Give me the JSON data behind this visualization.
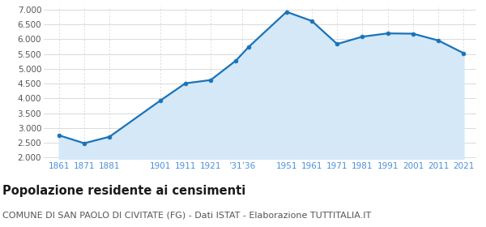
{
  "years": [
    1861,
    1871,
    1881,
    1901,
    1911,
    1921,
    1931,
    1936,
    1951,
    1961,
    1971,
    1981,
    1991,
    2001,
    2011,
    2021
  ],
  "population": [
    2750,
    2480,
    2700,
    3920,
    4510,
    4620,
    5280,
    5740,
    6930,
    6620,
    5840,
    6090,
    6200,
    6190,
    5960,
    5530
  ],
  "x_tick_labels": [
    "1861",
    "1871",
    "1881",
    "1901",
    "1911",
    "1921",
    "’31’36",
    "1951",
    "1961",
    "1971",
    "1981",
    "1991",
    "2001",
    "2011",
    "2021"
  ],
  "x_tick_positions": [
    1861,
    1871,
    1881,
    1901,
    1911,
    1921,
    1933.5,
    1951,
    1961,
    1971,
    1981,
    1991,
    2001,
    2011,
    2021
  ],
  "line_color": "#1a73b8",
  "fill_color": "#d4e8f7",
  "marker_color": "#1a73b8",
  "grid_color_h": "#cccccc",
  "grid_color_v": "#cccccc",
  "background_color": "#ffffff",
  "ylim_min": 1950,
  "ylim_max": 7100,
  "yticks": [
    2000,
    2500,
    3000,
    3500,
    4000,
    4500,
    5000,
    5500,
    6000,
    6500,
    7000
  ],
  "xlim_min": 1855,
  "xlim_max": 2026,
  "title": "Popolazione residente ai censimenti",
  "subtitle": "COMUNE DI SAN PAOLO DI CIVITATE (FG) - Dati ISTAT - Elaborazione TUTTITALIA.IT",
  "title_fontsize": 10.5,
  "subtitle_fontsize": 8,
  "tick_color": "#4a90d9",
  "ytick_color": "#555555",
  "line_width": 1.6,
  "marker_size": 3.5
}
